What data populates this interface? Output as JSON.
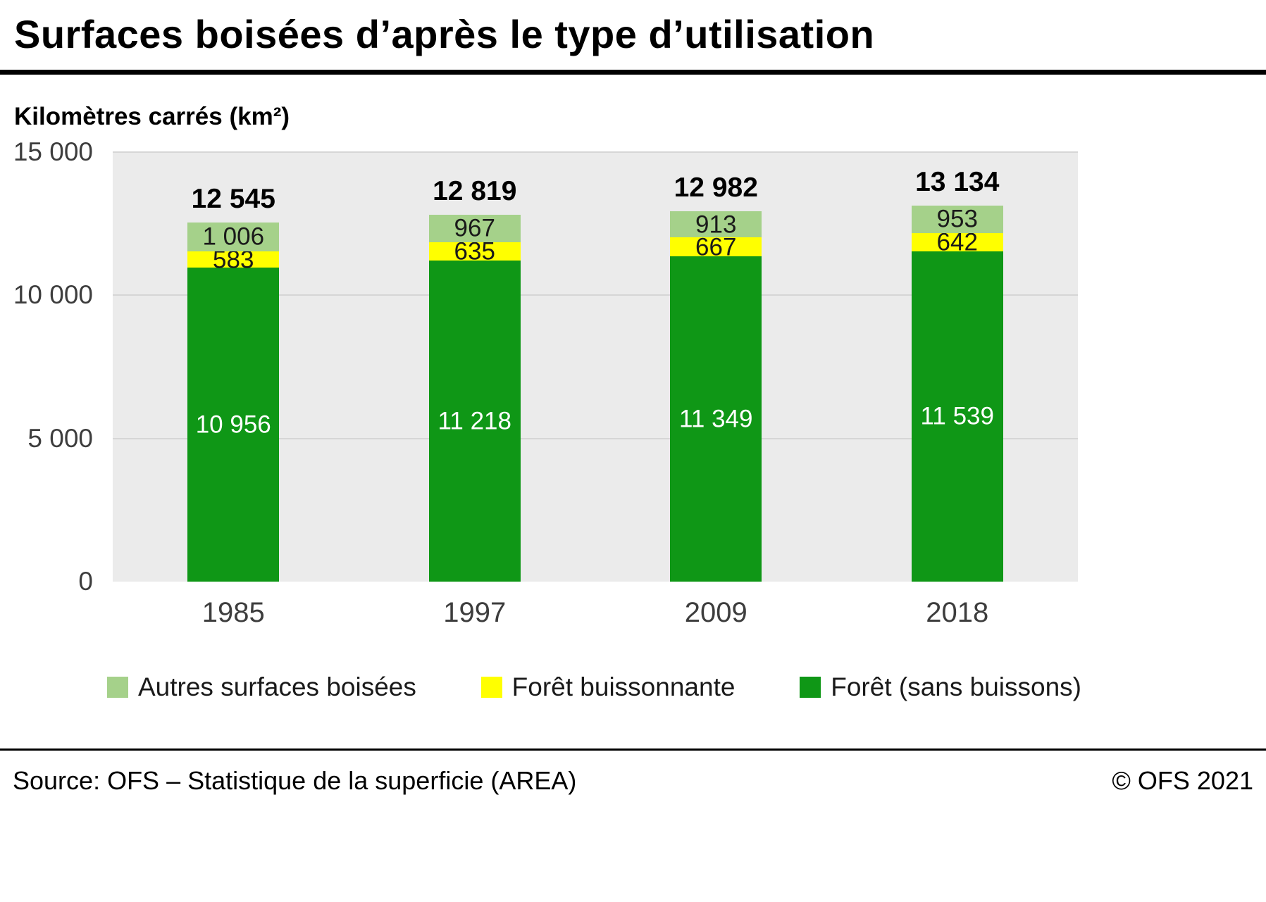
{
  "title": "Surfaces boisées d’après le type d’utilisation",
  "subtitle": "Kilomètres carrés (km²)",
  "footer": {
    "source": "Source: OFS – Statistique de la superficie (AREA)",
    "copyright": "© OFS 2021"
  },
  "chart_data": {
    "type": "bar",
    "stacked": true,
    "title": "Surfaces boisées d’après le type d’utilisation",
    "ylabel": "Kilomètres carrés (km²)",
    "xlabel": "",
    "categories": [
      "1985",
      "1997",
      "2009",
      "2018"
    ],
    "series": [
      {
        "name": "Forêt (sans buissons)",
        "color": "#0f9716",
        "values": [
          10956,
          11218,
          11349,
          11539
        ],
        "value_labels": [
          "10 956",
          "11 218",
          "11 349",
          "11 539"
        ],
        "label_color": "#ffffff"
      },
      {
        "name": "Forêt buissonnante",
        "color": "#ffff00",
        "values": [
          583,
          635,
          667,
          642
        ],
        "value_labels": [
          "583",
          "635",
          "667",
          "642"
        ],
        "label_color": "#1a1a1a"
      },
      {
        "name": "Autres surfaces boisées",
        "color": "#a5d18a",
        "values": [
          1006,
          967,
          913,
          953
        ],
        "value_labels": [
          "1 006",
          "967",
          "913",
          "953"
        ],
        "label_color": "#1a1a1a"
      }
    ],
    "totals": [
      12545,
      12819,
      12982,
      13134
    ],
    "total_labels": [
      "12 545",
      "12 819",
      "12 982",
      "13 134"
    ],
    "ylim": [
      0,
      15000
    ],
    "yticks": [
      0,
      5000,
      10000,
      15000
    ],
    "ytick_labels": [
      "0",
      "5 000",
      "10 000",
      "15 000"
    ],
    "grid": true,
    "legend_position": "bottom",
    "legend": [
      {
        "label": "Autres surfaces boisées",
        "color": "#a5d18a"
      },
      {
        "label": "Forêt buissonnante",
        "color": "#ffff00"
      },
      {
        "label": "Forêt (sans buissons)",
        "color": "#0f9716"
      }
    ]
  }
}
